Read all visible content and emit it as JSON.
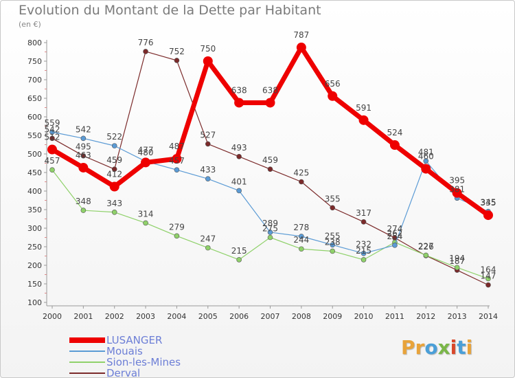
{
  "title": "Evolution du Montant de la Dette par Habitant",
  "subtitle": "(en €)",
  "logo": {
    "text": "Proxiti",
    "letters": [
      {
        "ch": "P",
        "color": "#e8a33a"
      },
      {
        "ch": "r",
        "color": "#e8a33a"
      },
      {
        "ch": "o",
        "color": "#4a9fd8"
      },
      {
        "ch": "x",
        "color": "#7ab648"
      },
      {
        "ch": "i",
        "color": "#d9472b"
      },
      {
        "ch": "t",
        "color": "#4a9fd8"
      },
      {
        "ch": "i",
        "color": "#e8a33a"
      }
    ]
  },
  "chart_data": {
    "type": "line",
    "x": [
      "2000",
      "2001",
      "2002",
      "2003",
      "2004",
      "2005",
      "2006",
      "2007",
      "2008",
      "2009",
      "2010",
      "2011",
      "2012",
      "2013",
      "2014"
    ],
    "ylim": [
      100,
      800
    ],
    "yticks": [
      100,
      150,
      200,
      250,
      300,
      350,
      400,
      450,
      500,
      550,
      600,
      650,
      700,
      750,
      800
    ],
    "grid": false,
    "legend_position": "bottom-left",
    "series": [
      {
        "name": "LUSANGER",
        "color": "#ee0000",
        "width": 7,
        "marker": 7,
        "values": [
          512,
          463,
          412,
          477,
          487,
          750,
          638,
          638,
          787,
          656,
          591,
          524,
          460,
          395,
          335
        ]
      },
      {
        "name": "Mouais",
        "color": "#5b9bd5",
        "width": 1.2,
        "marker": 3.5,
        "values": [
          559,
          542,
          522,
          480,
          457,
          433,
          401,
          289,
          278,
          255,
          232,
          254,
          481,
          381,
          345
        ]
      },
      {
        "name": "Sion-les-Mines",
        "color": "#8fd16a",
        "width": 1.2,
        "marker": 3.5,
        "values": [
          457,
          348,
          343,
          314,
          279,
          247,
          215,
          275,
          244,
          238,
          215,
          262,
          227,
          194,
          164
        ]
      },
      {
        "name": "Derval",
        "color": "#7b2a2a",
        "width": 1.2,
        "marker": 3.5,
        "values": [
          542,
          495,
          459,
          776,
          752,
          527,
          493,
          459,
          425,
          355,
          317,
          274,
          226,
          187,
          147
        ]
      }
    ]
  }
}
